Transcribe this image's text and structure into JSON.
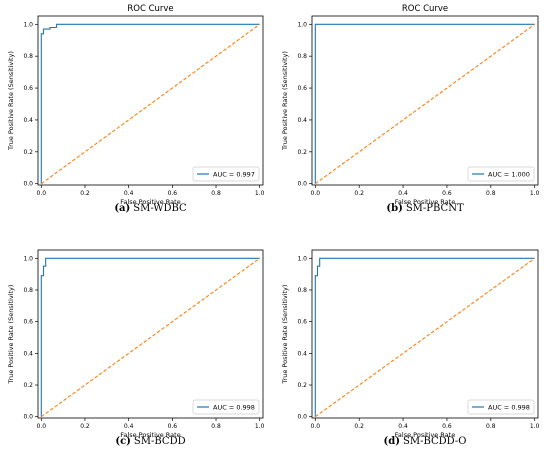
{
  "chart_data": [
    {
      "type": "line",
      "title": "ROC Curve",
      "xlabel": "False Positive Rate",
      "ylabel": "True Positive Rate (Sensitivity)",
      "caption_label": "(a)",
      "caption_name": "SM-WDBC",
      "xlim": [
        0,
        1
      ],
      "ylim": [
        0,
        1
      ],
      "xticks": [
        "0.0",
        "0.2",
        "0.4",
        "0.6",
        "0.8",
        "1.0"
      ],
      "yticks": [
        "0.0",
        "0.2",
        "0.4",
        "0.6",
        "0.8",
        "1.0"
      ],
      "legend_placement": "bottom-right",
      "grid": false,
      "series": [
        {
          "name": "AUC = 0.997",
          "color": "#1f77b4",
          "style": "solid",
          "x": [
            0,
            0,
            0.01,
            0.01,
            0.04,
            0.04,
            0.07,
            0.07,
            1.0
          ],
          "y": [
            0,
            0.94,
            0.94,
            0.97,
            0.97,
            0.98,
            0.98,
            1.0,
            1.0
          ]
        },
        {
          "color": "#ff7f0e",
          "style": "dashed",
          "x": [
            0,
            1
          ],
          "y": [
            0,
            1
          ]
        }
      ]
    },
    {
      "type": "line",
      "title": "ROC Curve",
      "xlabel": "False Positive Rate",
      "ylabel": "True Positive Rate (Sensitivity)",
      "caption_label": "(b)",
      "caption_name": "SM-PBCNT",
      "xlim": [
        0,
        1
      ],
      "ylim": [
        0,
        1
      ],
      "xticks": [
        "0.0",
        "0.2",
        "0.4",
        "0.6",
        "0.8",
        "1.0"
      ],
      "yticks": [
        "0.0",
        "0.2",
        "0.4",
        "0.6",
        "0.8",
        "1.0"
      ],
      "legend_placement": "bottom-right",
      "grid": false,
      "series": [
        {
          "name": "AUC = 1.000",
          "color": "#1f77b4",
          "style": "solid",
          "x": [
            0,
            0,
            1.0
          ],
          "y": [
            0,
            1.0,
            1.0
          ]
        },
        {
          "color": "#ff7f0e",
          "style": "dashed",
          "x": [
            0,
            1
          ],
          "y": [
            0,
            1
          ]
        }
      ]
    },
    {
      "type": "line",
      "title": "",
      "xlabel": "False Positive Rate",
      "ylabel": "True Positive Rate (Sensitivity)",
      "caption_label": "(c)",
      "caption_name": "SM-BCDD",
      "xlim": [
        0,
        1
      ],
      "ylim": [
        0,
        1
      ],
      "xticks": [
        "0.0",
        "0.2",
        "0.4",
        "0.6",
        "0.8",
        "1.0"
      ],
      "yticks": [
        "0.0",
        "0.2",
        "0.4",
        "0.6",
        "0.8",
        "1.0"
      ],
      "legend_placement": "bottom-right",
      "grid": false,
      "series": [
        {
          "name": "AUC = 0.998",
          "color": "#1f77b4",
          "style": "solid",
          "x": [
            0,
            0,
            0.01,
            0.01,
            0.02,
            0.02,
            1.0
          ],
          "y": [
            0,
            0.89,
            0.89,
            0.95,
            0.95,
            1.0,
            1.0
          ]
        },
        {
          "color": "#ff7f0e",
          "style": "dashed",
          "x": [
            0,
            1
          ],
          "y": [
            0,
            1
          ]
        }
      ]
    },
    {
      "type": "line",
      "title": "",
      "xlabel": "False Positive Rate",
      "ylabel": "True Positive Rate (Sensitivity)",
      "caption_label": "(d)",
      "caption_name": "SM-BCDD-O",
      "xlim": [
        0,
        1
      ],
      "ylim": [
        0,
        1
      ],
      "xticks": [
        "0.0",
        "0.2",
        "0.4",
        "0.6",
        "0.8",
        "1.0"
      ],
      "yticks": [
        "0.0",
        "0.2",
        "0.4",
        "0.6",
        "0.8",
        "1.0"
      ],
      "legend_placement": "bottom-right",
      "grid": false,
      "series": [
        {
          "name": "AUC = 0.998",
          "color": "#1f77b4",
          "style": "solid",
          "x": [
            0,
            0,
            0.01,
            0.01,
            0.02,
            0.02,
            1.0
          ],
          "y": [
            0,
            0.89,
            0.89,
            0.95,
            0.95,
            1.0,
            1.0
          ]
        },
        {
          "color": "#ff7f0e",
          "style": "dashed",
          "x": [
            0,
            1
          ],
          "y": [
            0,
            1
          ]
        }
      ]
    }
  ]
}
